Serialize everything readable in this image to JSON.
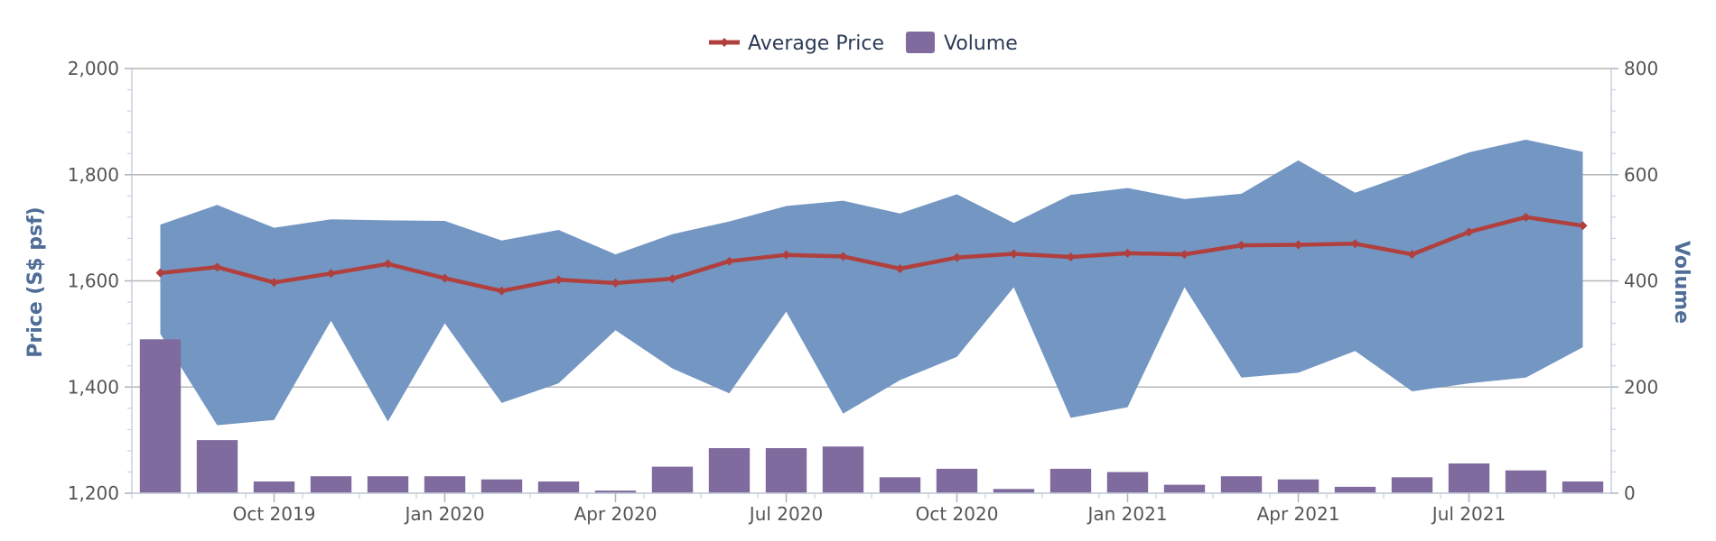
{
  "chart_data": {
    "type": "bar",
    "categories": [
      "Aug 2019",
      "Sep 2019",
      "Oct 2019",
      "Nov 2019",
      "Dec 2019",
      "Jan 2020",
      "Feb 2020",
      "Mar 2020",
      "Apr 2020",
      "May 2020",
      "Jun 2020",
      "Jul 2020",
      "Aug 2020",
      "Sep 2020",
      "Oct 2020",
      "Nov 2020",
      "Dec 2020",
      "Jan 2021",
      "Feb 2021",
      "Mar 2021",
      "Apr 2021",
      "May 2021",
      "Jun 2021",
      "Jul 2021",
      "Aug 2021",
      "Sep 2021"
    ],
    "x_tick_labels": [
      "Oct 2019",
      "Jan 2020",
      "Apr 2020",
      "Jul 2020",
      "Oct 2020",
      "Jan 2021",
      "Apr 2021",
      "Jul 2021"
    ],
    "x_tick_positions": [
      "Oct 2019",
      "Jan 2020",
      "Apr 2020",
      "Jul 2020",
      "Oct 2020",
      "Jan 2021",
      "Apr 2021",
      "Jul 2021"
    ],
    "legend": {
      "placement": "top-center",
      "items": [
        "Average Price",
        "Volume"
      ]
    },
    "y_left": {
      "label": "Price (S$ psf)",
      "range": [
        1200,
        2000
      ],
      "ticks": [
        1200,
        1400,
        1600,
        1800,
        2000
      ],
      "tick_labels": [
        "1,200",
        "1,400",
        "1,600",
        "1,800",
        "2,000"
      ]
    },
    "y_right": {
      "label": "Volume",
      "range": [
        0,
        800
      ],
      "ticks": [
        0,
        200,
        400,
        600,
        800
      ],
      "tick_labels": [
        "0",
        "200",
        "400",
        "600",
        "800"
      ]
    },
    "grid": true,
    "colors": {
      "price_line": "#b0403e",
      "volume_bar": "#806b9e",
      "range_area": "#7396c2"
    },
    "series": [
      {
        "name": "Average Price",
        "type": "line",
        "axis": "left",
        "values": [
          1615,
          1626,
          1597,
          1614,
          1632,
          1605,
          1581,
          1602,
          1596,
          1604,
          1637,
          1649,
          1646,
          1623,
          1644,
          1651,
          1645,
          1652,
          1650,
          1667,
          1668,
          1670,
          1650,
          1692,
          1720,
          1704
        ]
      },
      {
        "name": "Volume",
        "type": "bar",
        "axis": "right",
        "values": [
          290,
          100,
          22,
          32,
          32,
          32,
          26,
          22,
          5,
          50,
          85,
          85,
          88,
          30,
          46,
          8,
          46,
          40,
          16,
          32,
          26,
          12,
          30,
          56,
          43,
          22
        ]
      },
      {
        "type": "arearange",
        "axis": "left",
        "low": [
          1500,
          1328,
          1338,
          1525,
          1335,
          1520,
          1370,
          1407,
          1507,
          1435,
          1388,
          1542,
          1350,
          1413,
          1457,
          1588,
          1342,
          1362,
          1588,
          1418,
          1427,
          1468,
          1392,
          1407,
          1418,
          1475
        ],
        "high": [
          1706,
          1743,
          1700,
          1716,
          1714,
          1713,
          1676,
          1696,
          1650,
          1688,
          1712,
          1741,
          1751,
          1727,
          1763,
          1709,
          1762,
          1775,
          1754,
          1764,
          1827,
          1766,
          1804,
          1842,
          1866,
          1843
        ]
      }
    ]
  }
}
